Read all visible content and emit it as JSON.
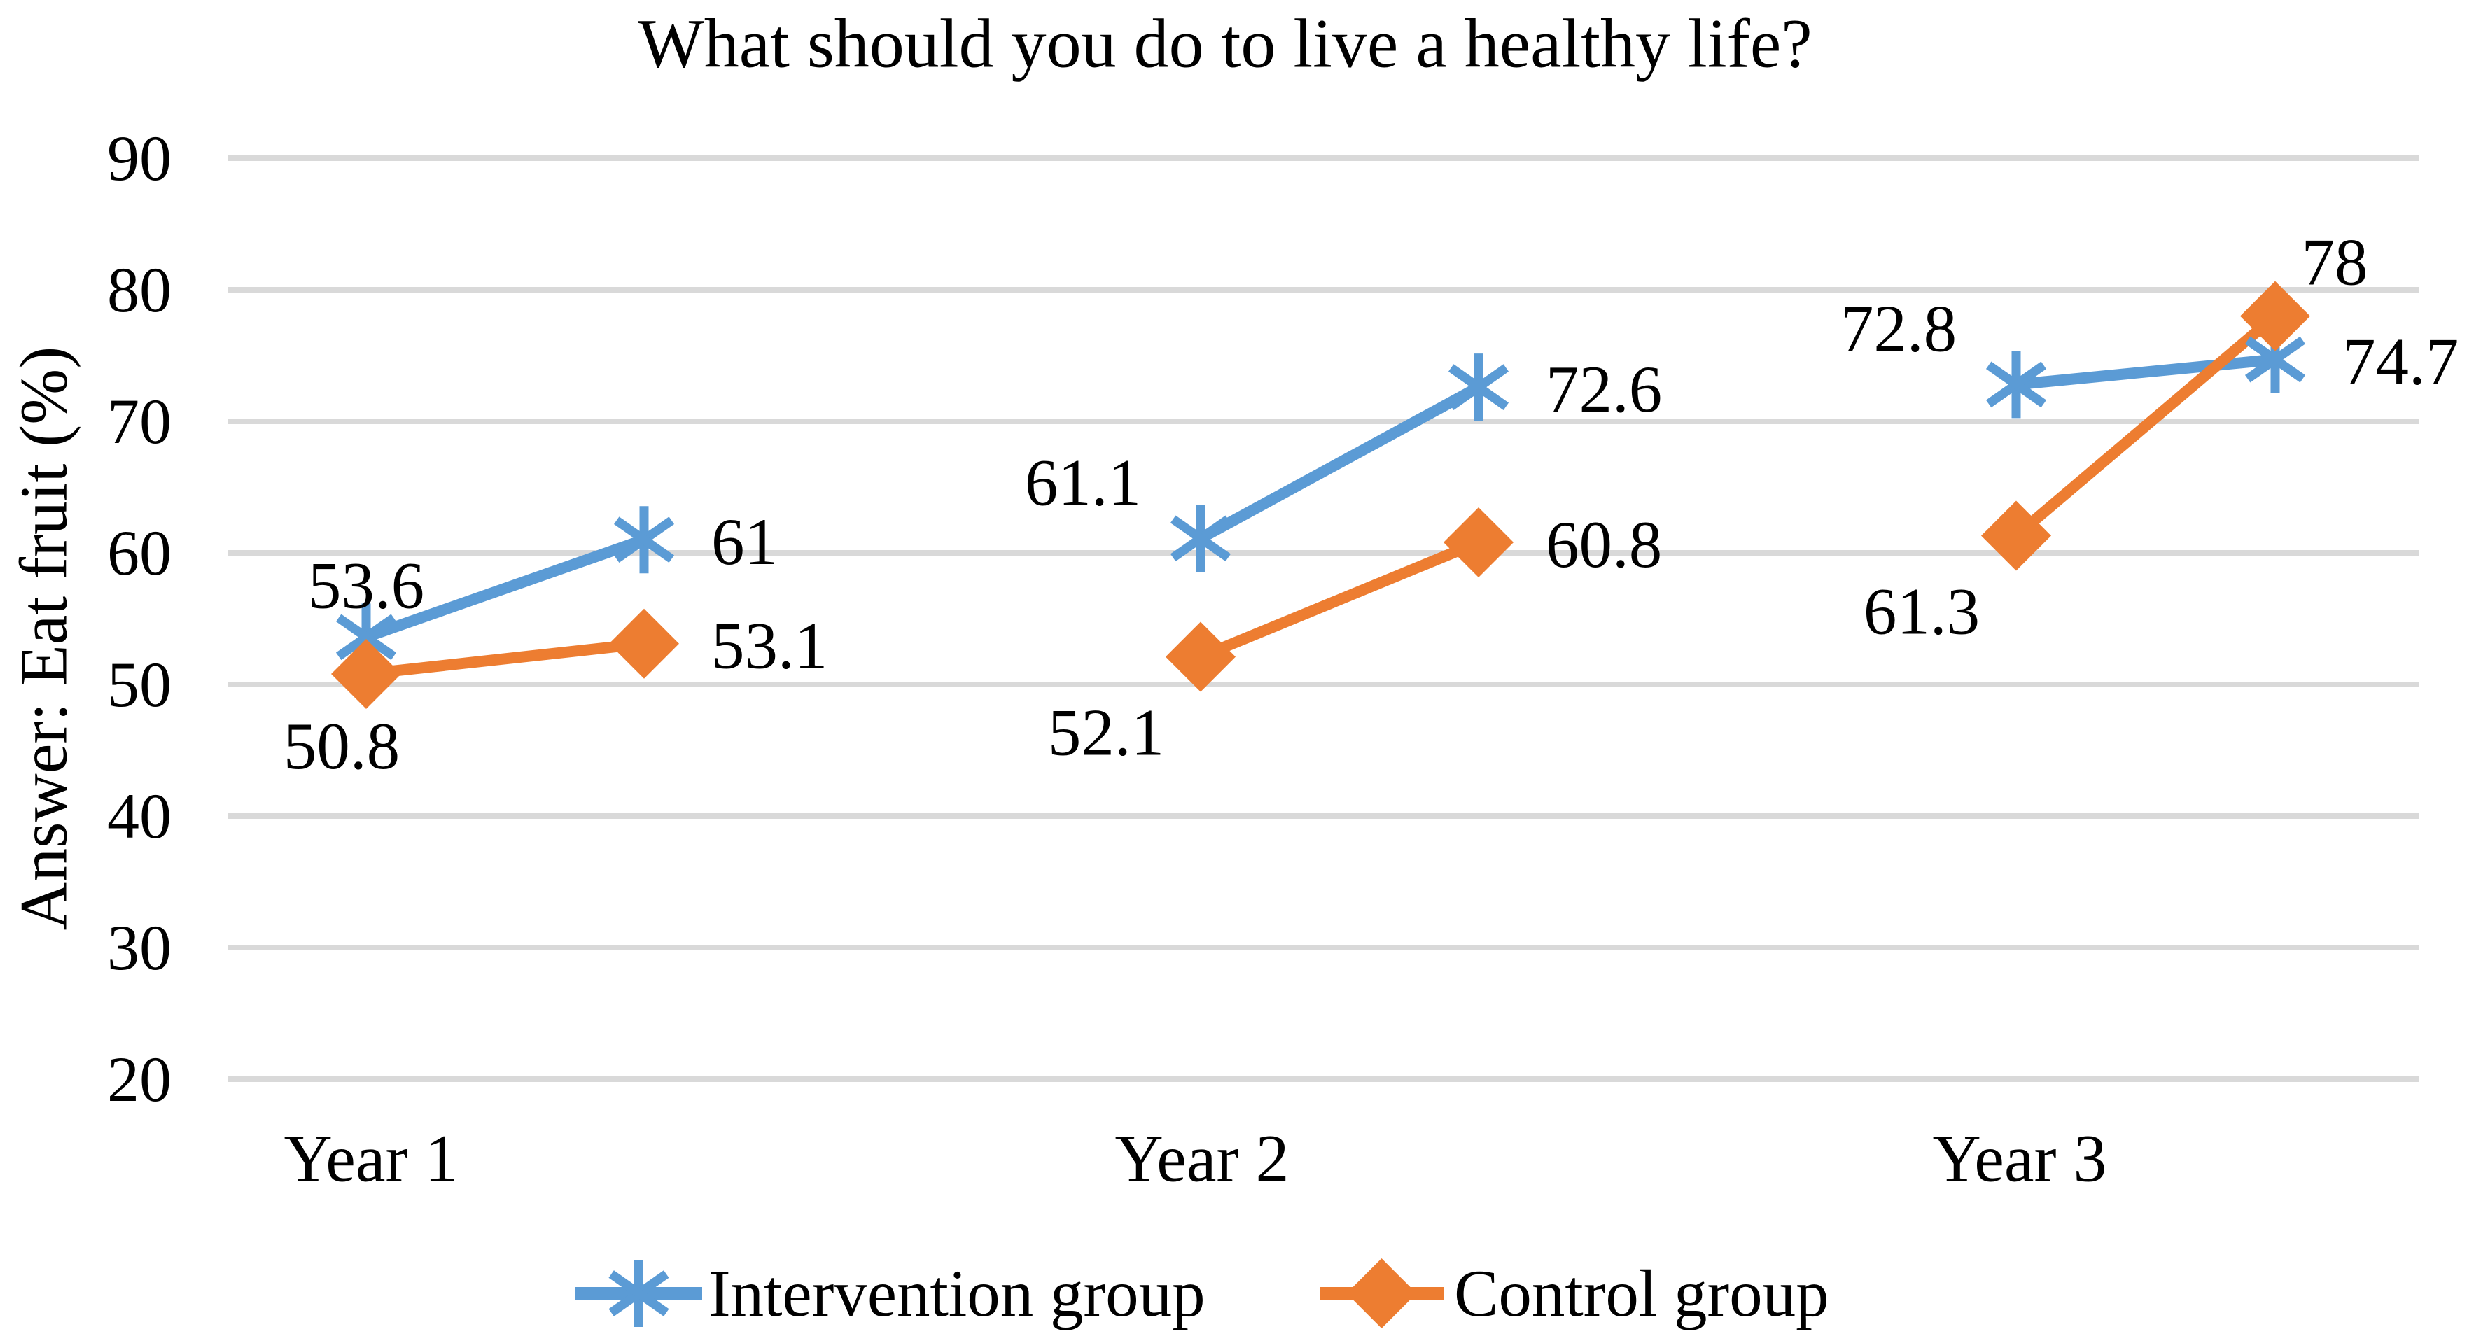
{
  "chart_data": {
    "type": "line",
    "title": "What should you do to live a healthy life?",
    "xlabel": "",
    "ylabel": "Answer: Eat fruit (%)",
    "ylim": [
      20,
      90
    ],
    "ytick_step": 10,
    "grid": true,
    "legend_position": "bottom",
    "gridline_color": "#D9D9D9",
    "text_color": "#000000",
    "background_color": "#FFFFFF",
    "categories": [
      "Year 1",
      "Year 2",
      "Year 3"
    ],
    "series": [
      {
        "name": "Intervention group",
        "color": "#5B9BD5",
        "marker": "asterisk",
        "segments": [
          [
            53.6,
            61
          ],
          [
            61.1,
            72.6
          ],
          [
            72.8,
            74.7
          ]
        ],
        "label_positions": [
          [
            "above",
            "right"
          ],
          [
            "above-left",
            "right"
          ],
          [
            "above-left",
            "right"
          ]
        ]
      },
      {
        "name": "Control group",
        "color": "#ED7D31",
        "marker": "diamond",
        "segments": [
          [
            50.8,
            53.1
          ],
          [
            52.1,
            60.8
          ],
          [
            61.3,
            78
          ]
        ],
        "label_positions": [
          [
            "below",
            "right"
          ],
          [
            "below-left",
            "right"
          ],
          [
            "below-left",
            "above-right"
          ]
        ]
      }
    ]
  }
}
